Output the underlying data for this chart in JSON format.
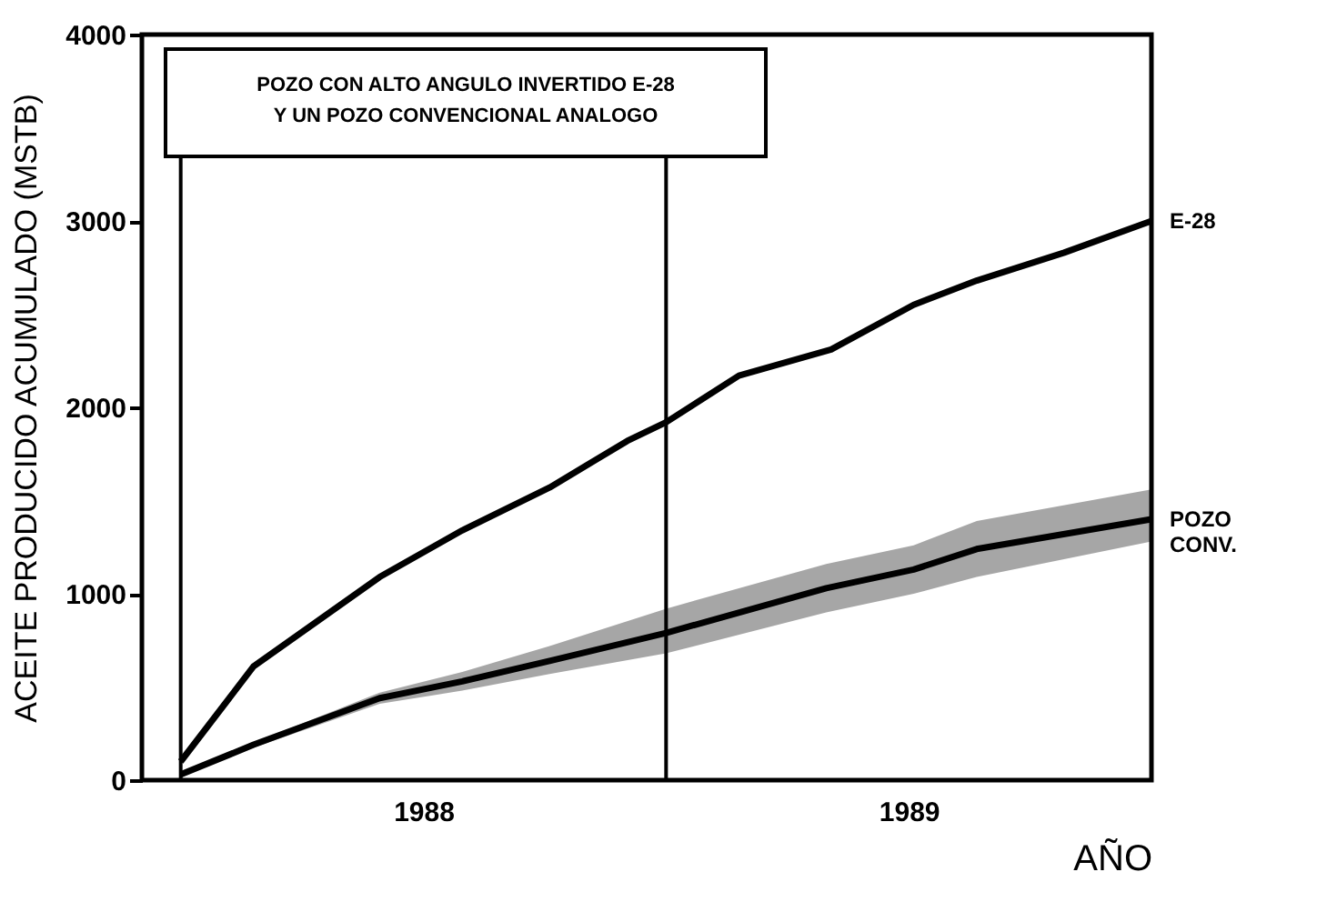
{
  "chart_data": {
    "type": "line",
    "xlabel": "AÑO",
    "ylabel": "ACEITE PRODUCIDO ACUMULADO (MSTB)",
    "annotations": [
      "POZO CON ALTO ANGULO INVERTIDO E-28\nY UN POZO CONVENCIONAL ANALOGO"
    ],
    "xlim": [
      1987.92,
      1990.0
    ],
    "xticks": [
      {
        "value": 1988.5,
        "label": "1988"
      },
      {
        "value": 1989.5,
        "label": "1989"
      }
    ],
    "ylim": [
      0,
      4000
    ],
    "yticks": [
      0,
      1000,
      2000,
      3000,
      4000
    ],
    "ref_lines": [
      {
        "axis": "x",
        "value": 1988.0,
        "label": null,
        "color": "#000000"
      },
      {
        "axis": "x",
        "value": 1989.0,
        "label": null,
        "color": "#000000"
      }
    ],
    "grid": false,
    "legend": false,
    "marker": "none",
    "line_style": "solid",
    "series": [
      {
        "name": "E-28",
        "color": "#000000",
        "x": [
          1988.0,
          1988.15,
          1988.41,
          1988.58,
          1988.76,
          1988.92,
          1989.0,
          1989.15,
          1989.34,
          1989.51,
          1989.64,
          1989.82,
          1990.0
        ],
        "values": [
          100,
          610,
          1090,
          1340,
          1570,
          1820,
          1920,
          2170,
          2310,
          2550,
          2680,
          2830,
          3000
        ]
      },
      {
        "name": "POZO CONV.",
        "color": "#000000",
        "x": [
          1988.0,
          1988.15,
          1988.41,
          1988.58,
          1988.76,
          1989.0,
          1989.33,
          1989.51,
          1989.64,
          1990.0
        ],
        "values": [
          30,
          190,
          440,
          530,
          640,
          790,
          1030,
          1130,
          1240,
          1400
        ],
        "lower": [
          30,
          175,
          410,
          480,
          570,
          680,
          900,
          1000,
          1090,
          1280
        ],
        "upper": [
          30,
          200,
          470,
          580,
          720,
          920,
          1160,
          1260,
          1390,
          1560
        ]
      }
    ]
  }
}
